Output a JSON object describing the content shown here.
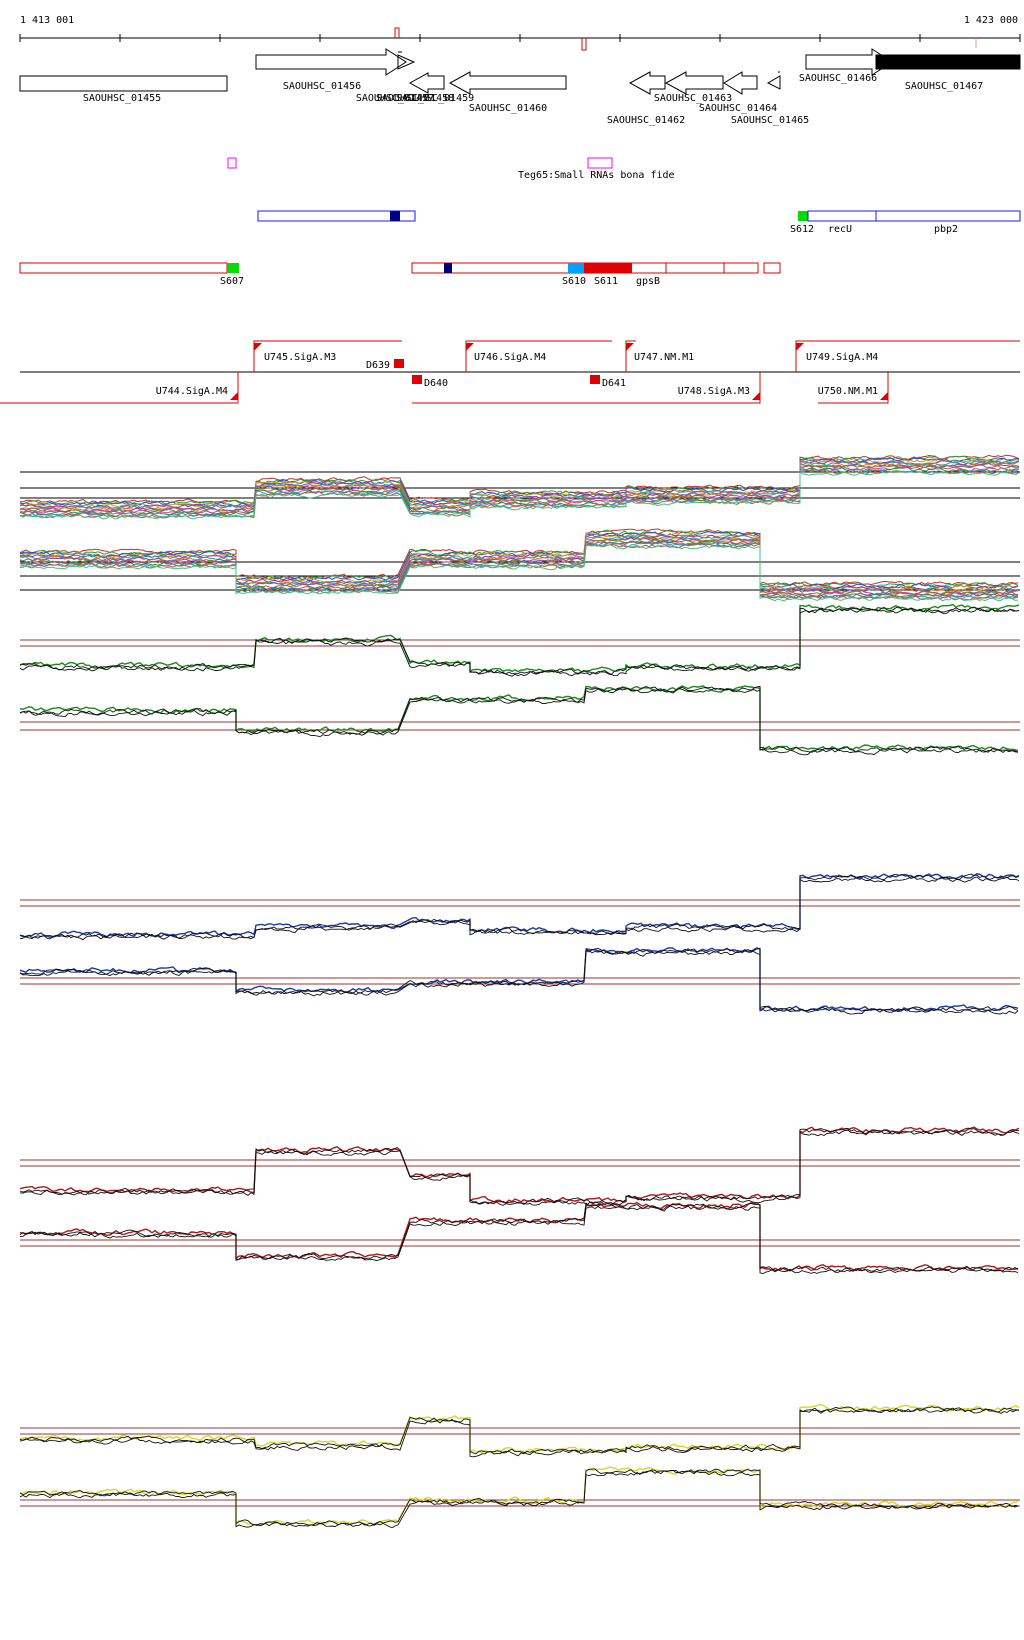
{
  "ruler": {
    "start_label": "1 413 001",
    "end_label": "1 423 000"
  },
  "genes": [
    {
      "id": "SAOUHSC_01455"
    },
    {
      "id": "SAOUHSC_01456"
    },
    {
      "id": "SAOUHSC_01457"
    },
    {
      "id": "SAOUHSC_01458"
    },
    {
      "id": "SAOUHSC_01459"
    },
    {
      "id": "SAOUHSC_01460"
    },
    {
      "id": "SAOUHSC_01462"
    },
    {
      "id": "SAOUHSC_01463"
    },
    {
      "id": "SAOUHSC_01464"
    },
    {
      "id": "SAOUHSC_01465"
    },
    {
      "id": "SAOUHSC_01466"
    },
    {
      "id": "SAOUHSC_01467"
    }
  ],
  "small_rna": {
    "label": "Teg65:Small RNAs bona fide"
  },
  "segments": {
    "S607": "S607",
    "S610": "S610",
    "S611": "S611",
    "S612": "S612",
    "recU": "recU",
    "pbp2": "pbp2",
    "gpsB": "gpsB"
  },
  "transcripts": {
    "U744": "U744.SigA.M4",
    "U745": "U745.SigA.M3",
    "U746": "U746.SigA.M4",
    "U747": "U747.NM.M1",
    "U748": "U748.SigA.M3",
    "U749": "U749.SigA.M4",
    "U750": "U750.NM.M1",
    "D639": "D639",
    "D640": "D640",
    "D641": "D641"
  },
  "colors": {
    "outline_blue": "#1a1aff",
    "outline_red": "#e00000",
    "dark_block": "#000000",
    "pink": "#ff00ff",
    "green_seg": "#00dd00",
    "cyan_seg": "#00a0ff",
    "navy_seg": "#000080",
    "threshold": "#a03030",
    "track_green": "#1a8a1a",
    "track_blue": "#1a3aa8",
    "track_red": "#b01818",
    "track_yellow": "#d8d820"
  },
  "tracks": [
    "multi-condition",
    "green",
    "blue",
    "red",
    "yellow"
  ]
}
